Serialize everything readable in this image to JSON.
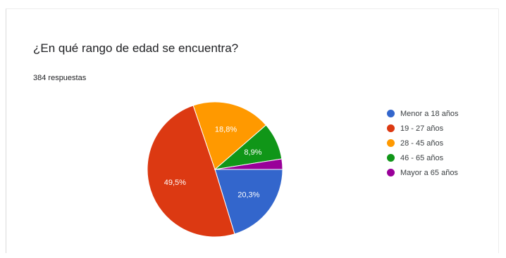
{
  "question": "¿En qué rango de edad se encuentra?",
  "responses_text": "384 respuestas",
  "chart_data": {
    "type": "pie",
    "title": "¿En qué rango de edad se encuentra?",
    "categories": [
      "Menor a 18 años",
      "19 - 27 años",
      "28 - 45 años",
      "46 - 65 años",
      "Mayor a 65 años"
    ],
    "values": [
      20.3,
      49.5,
      18.8,
      8.9,
      2.5
    ],
    "labels": [
      "20,3%",
      "49,5%",
      "18,8%",
      "8,9%",
      ""
    ],
    "colors": [
      "#3366cc",
      "#dc3912",
      "#ff9900",
      "#109618",
      "#990099"
    ],
    "legend_position": "right"
  }
}
